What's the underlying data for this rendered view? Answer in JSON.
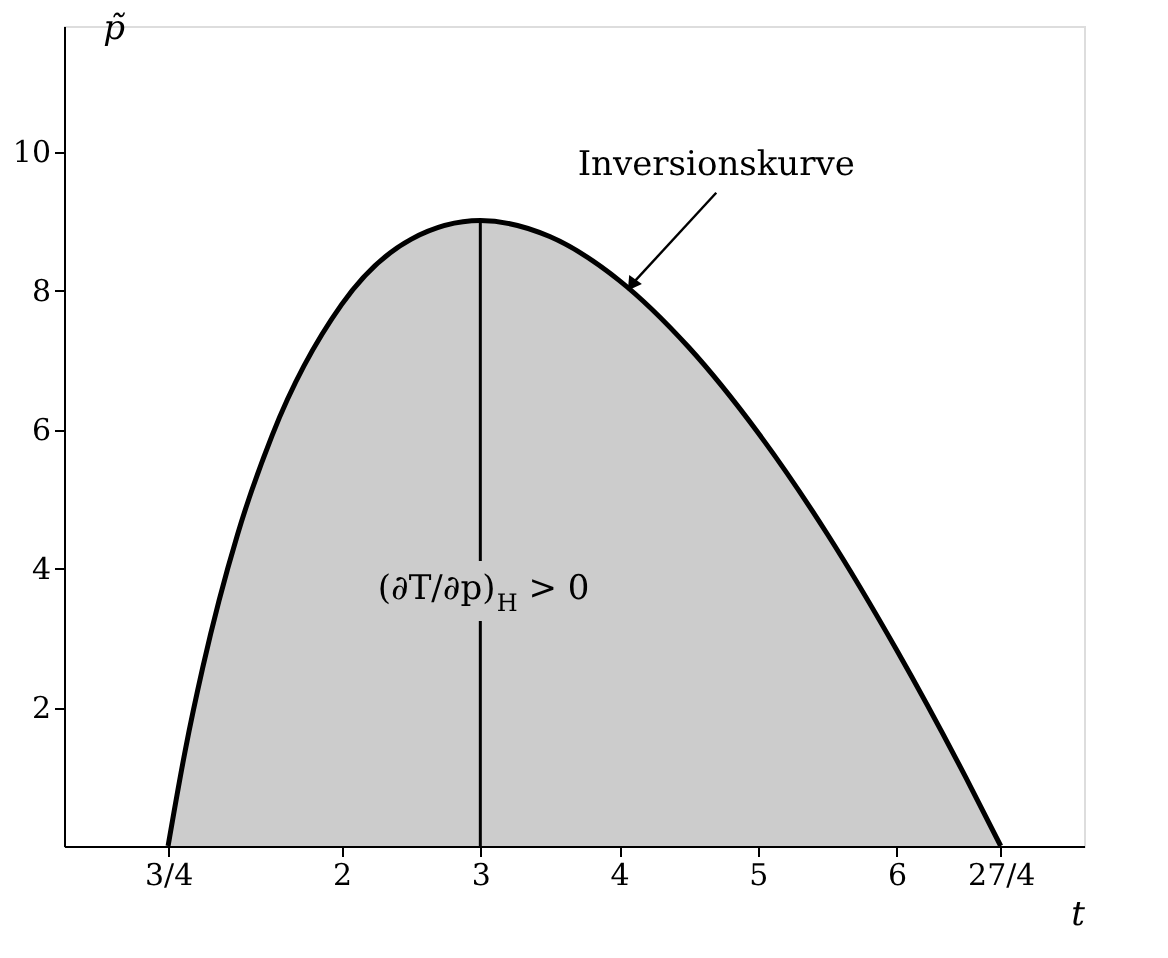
{
  "chart_data": {
    "type": "area",
    "xlabel": "t",
    "ylabel": "p̃",
    "x": [
      0.75,
      0.875,
      1,
      1.25,
      1.5,
      2,
      2.5,
      3,
      3.5,
      4,
      4.5,
      5,
      5.5,
      6,
      6.5,
      6.75
    ],
    "series": [
      {
        "color": "#cccccc",
        "values": [
          0,
          1.39,
          2.57,
          4.48,
          5.91,
          7.79,
          8.73,
          9,
          8.77,
          8.14,
          7.18,
          5.95,
          4.49,
          2.82,
          0.98,
          0
        ]
      }
    ],
    "xlim": [
      0,
      7.35
    ],
    "ylim": [
      0,
      11.8
    ],
    "xticks": [
      {
        "value": 0.75,
        "label": "3/4"
      },
      2,
      3,
      4,
      5,
      6,
      {
        "value": 6.75,
        "label": "27/4"
      }
    ],
    "yticks": [
      2,
      4,
      6,
      8,
      10
    ],
    "ref_lines": [
      {
        "axis": "x",
        "value": 3,
        "color": "#000000"
      }
    ],
    "annotations": [
      {
        "text": "Inversionskurve",
        "x": 4.1,
        "y": 8.1
      },
      {
        "text": "(∂T/∂p)$_{H}$ > 0",
        "x": 3,
        "y": 3.7
      }
    ],
    "grid": false
  }
}
